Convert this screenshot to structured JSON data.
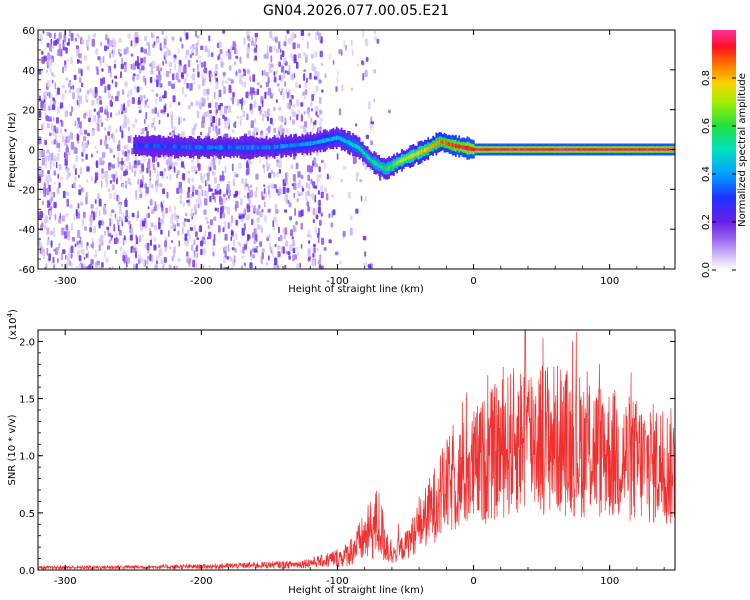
{
  "title": "GN04.2026.077.00.05.E21",
  "colors": {
    "snr_line": "#f03030",
    "track_core": "#ff2020",
    "noise": "#7a2ee0"
  },
  "chart_data": [
    {
      "type": "heatmap",
      "ylabel": "Frequency (Hz)",
      "xlabel": "Height of straight line (km)",
      "xlim": [
        -320,
        148
      ],
      "ylim": [
        -60,
        60
      ],
      "x_ticks": [
        -300,
        -200,
        -100,
        0,
        100
      ],
      "y_ticks": [
        -60,
        -40,
        -20,
        0,
        20,
        40,
        60
      ],
      "x_tick_labels": [
        "-300",
        "-200",
        "-100",
        "0",
        "100"
      ],
      "y_tick_labels": [
        "-60",
        "-40",
        "-20",
        "0",
        "20",
        "40",
        "60"
      ],
      "colorbar": {
        "label": "Normalized spectral amplitude",
        "range": [
          0,
          1
        ],
        "ticks": [
          0.0,
          0.2,
          0.4,
          0.6,
          0.8
        ],
        "tick_labels": [
          "0.0",
          "0.2",
          "0.4",
          "0.6",
          "0.8"
        ]
      },
      "signal_track": {
        "x": [
          -250,
          -200,
          -150,
          -120,
          -100,
          -85,
          -75,
          -65,
          -55,
          -45,
          -35,
          -25,
          -15,
          0,
          50,
          100,
          148
        ],
        "y": [
          2,
          1,
          1,
          3,
          6,
          1,
          -6,
          -10,
          -6,
          -3,
          0,
          4,
          2,
          0,
          0,
          0,
          0
        ],
        "amplitude": [
          0.3,
          0.35,
          0.35,
          0.4,
          0.45,
          0.5,
          0.55,
          0.6,
          0.7,
          0.75,
          0.8,
          0.85,
          0.9,
          0.95,
          0.95,
          0.95,
          0.95
        ]
      }
    },
    {
      "type": "line",
      "ylabel": "SNR (10 * v/v)",
      "y_multiplier": "(x10^4)",
      "xlabel": "Height of straight line (km)",
      "xlim": [
        -320,
        148
      ],
      "ylim": [
        0,
        2.1
      ],
      "x_ticks": [
        -300,
        -200,
        -100,
        0,
        100
      ],
      "y_ticks": [
        0.0,
        0.5,
        1.0,
        1.5,
        2.0
      ],
      "x_tick_labels": [
        "-300",
        "-200",
        "-100",
        "0",
        "100"
      ],
      "y_tick_labels": [
        "0.0",
        "0.5",
        "1.0",
        "1.5",
        "2.0"
      ],
      "envelope": {
        "x": [
          -320,
          -200,
          -130,
          -110,
          -95,
          -85,
          -75,
          -70,
          -65,
          -60,
          -50,
          -40,
          -30,
          -20,
          -10,
          0,
          10,
          20,
          30,
          40,
          50,
          60,
          80,
          100,
          120,
          148
        ],
        "y": [
          0.02,
          0.03,
          0.05,
          0.08,
          0.12,
          0.22,
          0.35,
          0.42,
          0.25,
          0.15,
          0.25,
          0.45,
          0.65,
          0.85,
          0.95,
          1.05,
          1.15,
          1.25,
          1.32,
          1.38,
          1.38,
          1.35,
          1.28,
          1.2,
          1.12,
          1.05
        ]
      },
      "peak": {
        "x": 38,
        "y": 2.1
      }
    }
  ]
}
